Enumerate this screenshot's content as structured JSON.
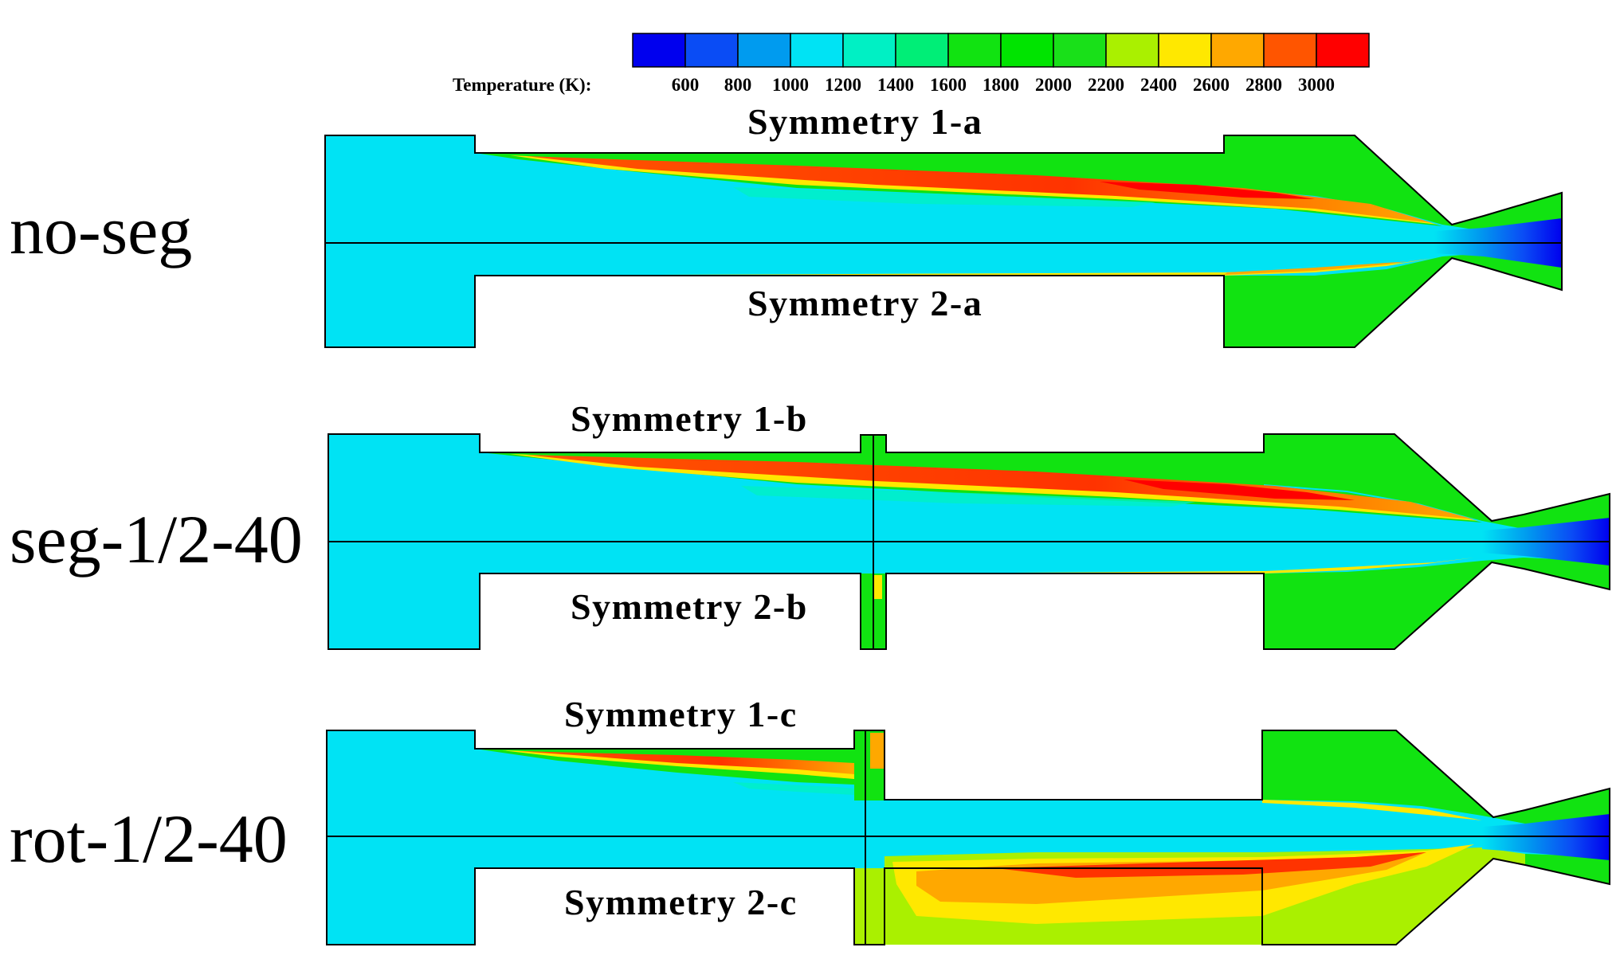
{
  "legend": {
    "title": "Temperature (K):",
    "ticks": [
      "600",
      "800",
      "1000",
      "1200",
      "1400",
      "1600",
      "1800",
      "2000",
      "2200",
      "2400",
      "2600",
      "2800",
      "3000"
    ],
    "colors": [
      "#0000ee",
      "#0a4cf5",
      "#009bef",
      "#00e3f4",
      "#00f0c4",
      "#00ee77",
      "#11e311",
      "#00e400",
      "#19e019",
      "#aaf000",
      "#ffe800",
      "#ffa800",
      "#ff5500",
      "#ff0000"
    ]
  },
  "cases": [
    {
      "name": "no-seg",
      "sym_top": "Symmetry 1-a",
      "sym_bottom": "Symmetry 2-a"
    },
    {
      "name": "seg-1/2-40",
      "sym_top": "Symmetry 1-b",
      "sym_bottom": "Symmetry 2-b"
    },
    {
      "name": "rot-1/2-40",
      "sym_top": "Symmetry 1-c",
      "sym_bottom": "Symmetry 2-c"
    }
  ],
  "colors": {
    "cold": "#00e3f4",
    "combustion": "#11e311",
    "outline": "#000000"
  }
}
